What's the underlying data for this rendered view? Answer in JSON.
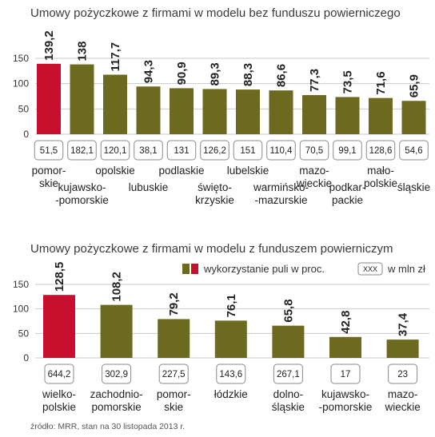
{
  "colors": {
    "highlight": "#c8102e",
    "bar": "#6b6a1e",
    "grid": "#c9c9c9",
    "box_border": "#8a8a8a"
  },
  "legend": {
    "bar_label": "wykorzystanie puli w proc.",
    "box_sample": "XXX",
    "box_label": "w mln zł"
  },
  "source": "źródło: MRR, stan na 30 listopada 2013 r.",
  "chart_data": [
    {
      "type": "bar",
      "title": "Umowy pożyczkowe z firmami w modelu bez funduszu powierniczego",
      "ylim": [
        0,
        150
      ],
      "yticks": [
        "0",
        "50",
        "100",
        "150"
      ],
      "categories": [
        [
          "pomor-",
          "skie"
        ],
        [
          "kujawsko-",
          "-pomorskie"
        ],
        [
          "opolskie"
        ],
        [
          "lubuskie"
        ],
        [
          "podlaskie"
        ],
        [
          "świętо-",
          "krzyskie"
        ],
        [
          "lubelskie"
        ],
        [
          "warmińsko-",
          "-mazurskie"
        ],
        [
          "mazo-",
          "wieckie"
        ],
        [
          "podkar-",
          "packie"
        ],
        [
          "mało-",
          "polskie"
        ],
        [
          "śląskie"
        ]
      ],
      "values": [
        139.2,
        138,
        117.7,
        94.3,
        90.9,
        89.3,
        88.3,
        86.6,
        77.3,
        73.5,
        71.6,
        65.9
      ],
      "value_labels": [
        "139,2",
        "138",
        "117,7",
        "94,3",
        "90,9",
        "89,3",
        "88,3",
        "86,6",
        "77,3",
        "73,5",
        "71,6",
        "65,9"
      ],
      "amounts": [
        "51,5",
        "182,1",
        "120,1",
        "38,1",
        "131",
        "126,2",
        "151",
        "110,4",
        "70,5",
        "99,1",
        "128,6",
        "54,6"
      ],
      "highlight_index": 0
    },
    {
      "type": "bar",
      "title": "Umowy pożyczkowe z firmami w modelu z funduszem powierniczym",
      "ylim": [
        0,
        150
      ],
      "yticks": [
        "0",
        "50",
        "100",
        "150"
      ],
      "categories": [
        [
          "wielko-",
          "polskie"
        ],
        [
          "zachodnio-",
          "pomorskie"
        ],
        [
          "pomor-",
          "skie"
        ],
        [
          "łódzkie"
        ],
        [
          "dolno-",
          "śląskie"
        ],
        [
          "kujawsko-",
          "-pomorskie"
        ],
        [
          "mazo-",
          "wieckie"
        ]
      ],
      "values": [
        128.5,
        108.2,
        79.2,
        76.1,
        65.8,
        42.8,
        37.4
      ],
      "value_labels": [
        "128,5",
        "108,2",
        "79,2",
        "76,1",
        "65,8",
        "42,8",
        "37,4"
      ],
      "amounts": [
        "644,2",
        "302,9",
        "227,5",
        "143,6",
        "267,1",
        "17",
        "23"
      ],
      "highlight_index": 0
    }
  ]
}
